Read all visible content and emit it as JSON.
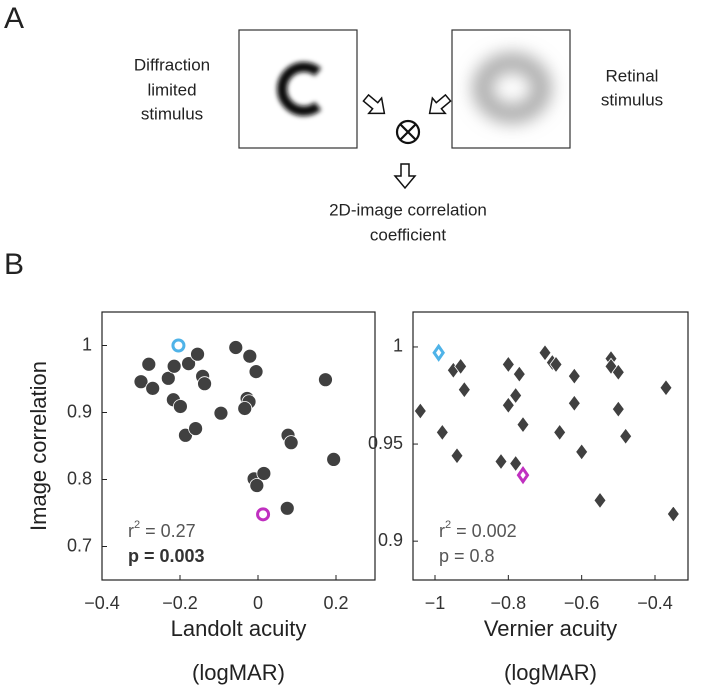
{
  "panel_labels": [
    "A",
    "B"
  ],
  "diagram": {
    "left_text": [
      "Diffraction",
      "limited",
      "stimulus"
    ],
    "right_text": [
      "Retinal",
      "stimulus"
    ],
    "output_text": [
      "2D-image correlation",
      "coefficient"
    ]
  },
  "chart_data": [
    {
      "type": "scatter",
      "marker": "circle",
      "ylabel": "Image correlation",
      "xlabel": [
        "Landolt acuity",
        "(logMAR)"
      ],
      "xlim": [
        -0.4,
        0.3
      ],
      "ylim": [
        0.65,
        1.05
      ],
      "xticks": [
        {
          "value": -0.4,
          "label": "−0.4"
        },
        {
          "value": -0.2,
          "label": "−0.2"
        },
        0,
        0.2
      ],
      "yticks": [
        0.7,
        0.8,
        0.9,
        1
      ],
      "stats": {
        "r_symbol": "r",
        "r_exponent": "2",
        "r_value": " = 0.27",
        "p_value": "p = 0.003",
        "p_bold": true
      },
      "series": [
        {
          "color": "#404040",
          "filled": true,
          "x": [
            -0.28,
            -0.3,
            -0.27,
            -0.23,
            -0.215,
            -0.178,
            -0.155,
            -0.142,
            -0.137,
            -0.217,
            -0.199,
            -0.186,
            -0.16,
            -0.095,
            -0.057,
            -0.021,
            -0.005,
            -0.028,
            -0.023,
            -0.034,
            -0.01,
            0.015,
            -0.003,
            0.077,
            0.085,
            0.075,
            0.173,
            0.194
          ],
          "values": [
            0.972,
            0.946,
            0.936,
            0.951,
            0.969,
            0.973,
            0.987,
            0.954,
            0.943,
            0.919,
            0.909,
            0.866,
            0.876,
            0.899,
            0.997,
            0.984,
            0.961,
            0.921,
            0.916,
            0.906,
            0.801,
            0.809,
            0.791,
            0.866,
            0.855,
            0.757,
            0.949,
            0.83
          ]
        },
        {
          "color": "#4fb3e8",
          "filled": false,
          "x": [
            -0.204
          ],
          "values": [
            1.0
          ]
        },
        {
          "color": "#c030c0",
          "filled": false,
          "x": [
            0.013
          ],
          "values": [
            0.748
          ]
        }
      ]
    },
    {
      "type": "scatter",
      "marker": "diamond",
      "xlabel": [
        "Vernier acuity",
        "(logMAR)"
      ],
      "xlim": [
        -1.06,
        -0.31
      ],
      "ylim": [
        0.88,
        1.018
      ],
      "xticks": [
        {
          "value": -1,
          "label": "−1"
        },
        {
          "value": -0.8,
          "label": "−0.8"
        },
        {
          "value": -0.6,
          "label": "−0.6"
        },
        {
          "value": -0.4,
          "label": "−0.4"
        }
      ],
      "yticks": [
        0.9,
        0.95,
        1
      ],
      "stats": {
        "r_symbol": "r",
        "r_exponent": "2",
        "r_value": " = 0.002",
        "p_value": "p = 0.8",
        "p_bold": false
      },
      "series": [
        {
          "color": "#404040",
          "filled": true,
          "x": [
            -1.04,
            -0.98,
            -0.95,
            -0.93,
            -0.92,
            -0.94,
            -0.8,
            -0.77,
            -0.78,
            -0.8,
            -0.76,
            -0.82,
            -0.78,
            -0.7,
            -0.68,
            -0.67,
            -0.62,
            -0.62,
            -0.66,
            -0.6,
            -0.52,
            -0.52,
            -0.5,
            -0.5,
            -0.48,
            -0.55,
            -0.37,
            -0.35
          ],
          "values": [
            0.967,
            0.956,
            0.988,
            0.99,
            0.978,
            0.944,
            0.991,
            0.986,
            0.975,
            0.97,
            0.96,
            0.941,
            0.94,
            0.997,
            0.992,
            0.991,
            0.985,
            0.971,
            0.956,
            0.946,
            0.994,
            0.99,
            0.987,
            0.968,
            0.954,
            0.921,
            0.979,
            0.914
          ]
        },
        {
          "color": "#4fb3e8",
          "filled": false,
          "x": [
            -0.99
          ],
          "values": [
            0.997
          ]
        },
        {
          "color": "#c030c0",
          "filled": false,
          "x": [
            -0.76
          ],
          "values": [
            0.934
          ]
        }
      ]
    }
  ]
}
